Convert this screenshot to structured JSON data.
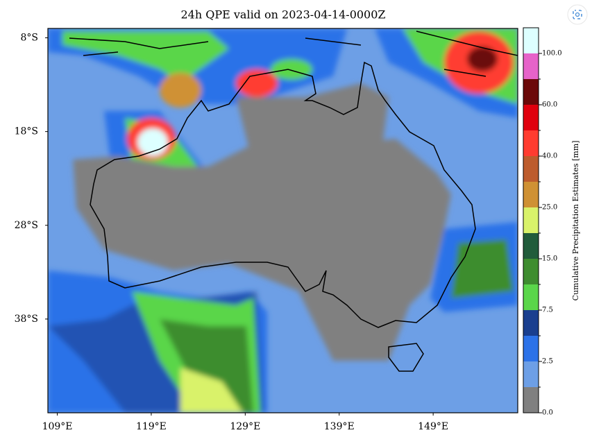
{
  "map": {
    "title": "24h QPE valid on 2023-04-14-0000Z",
    "xlim": [
      108,
      158
    ],
    "ylim": [
      -48,
      -7
    ],
    "lon_ticks": [
      {
        "value": 109,
        "label": "109°E"
      },
      {
        "value": 119,
        "label": "119°E"
      },
      {
        "value": 129,
        "label": "129°E"
      },
      {
        "value": 139,
        "label": "139°E"
      },
      {
        "value": 149,
        "label": "149°E"
      }
    ],
    "lat_ticks": [
      {
        "value": -8,
        "label": "8°S"
      },
      {
        "value": -18,
        "label": "18°S"
      },
      {
        "value": -28,
        "label": "28°S"
      },
      {
        "value": -38,
        "label": "38°S"
      }
    ],
    "colorbar": {
      "label": "Cumulative Precipitation Estimates [mm]",
      "colors": [
        "#808080",
        "#6d9fe6",
        "#2c72e8",
        "#1a3f8f",
        "#5ad64a",
        "#3e8d2f",
        "#215c3b",
        "#d9f26a",
        "#cf9134",
        "#bd5c2d",
        "#ff3c30",
        "#e0000e",
        "#6b0909",
        "#e663c9",
        "#ddffff"
      ],
      "ticks": [
        {
          "value": 0,
          "label": "0.0"
        },
        {
          "value": 2.5,
          "label": "2.5"
        },
        {
          "value": 7.5,
          "label": "7.5"
        },
        {
          "value": 15,
          "label": "15.0"
        },
        {
          "value": 25,
          "label": "25.0"
        },
        {
          "value": 40,
          "label": "40.0"
        },
        {
          "value": 60,
          "label": "60.0"
        },
        {
          "value": 100,
          "label": "100.0"
        }
      ]
    }
  }
}
